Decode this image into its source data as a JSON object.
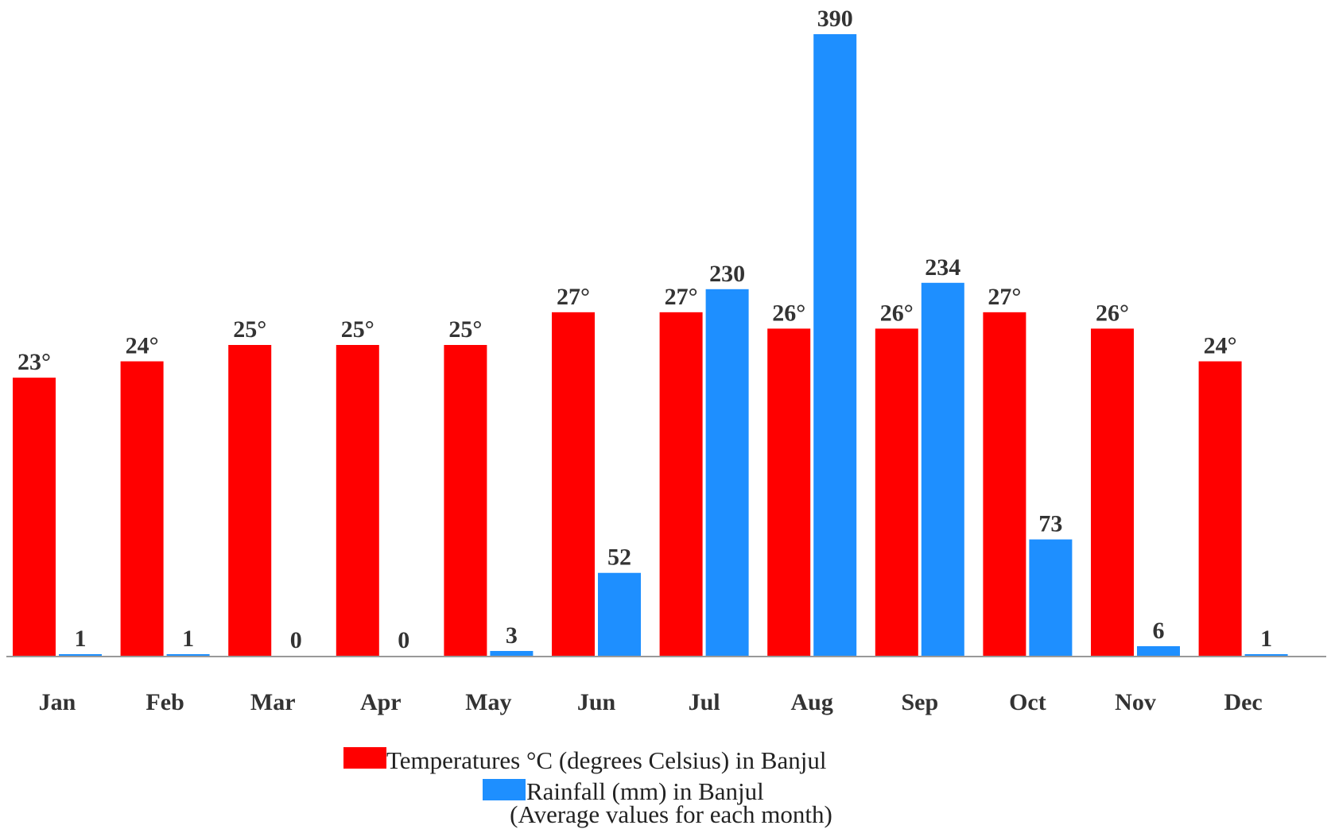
{
  "chart_data": {
    "type": "bar",
    "subtitle": "(Average values for each month)",
    "categories": [
      "Jan",
      "Feb",
      "Mar",
      "Apr",
      "May",
      "Jun",
      "Jul",
      "Aug",
      "Sep",
      "Oct",
      "Nov",
      "Dec"
    ],
    "series": [
      {
        "name": "Temperatures °C (degrees Celsius) in Banjul",
        "color": "#ff0000",
        "values": [
          23,
          24,
          25,
          25,
          25,
          27,
          27,
          26,
          26,
          27,
          26,
          24
        ],
        "value_labels": [
          "23°",
          "24°",
          "25°",
          "25°",
          "25°",
          "27°",
          "27°",
          "26°",
          "26°",
          "27°",
          "26°",
          "24°"
        ]
      },
      {
        "name": "Rainfall (mm) in Banjul",
        "color": "#1e8fff",
        "axis": "y2",
        "values": [
          1,
          1,
          0,
          0,
          3,
          52,
          230,
          390,
          234,
          73,
          6,
          1
        ]
      }
    ],
    "ylim": [
      6,
      44
    ],
    "y2lim": [
      0,
      390
    ],
    "legend": "bottom"
  }
}
